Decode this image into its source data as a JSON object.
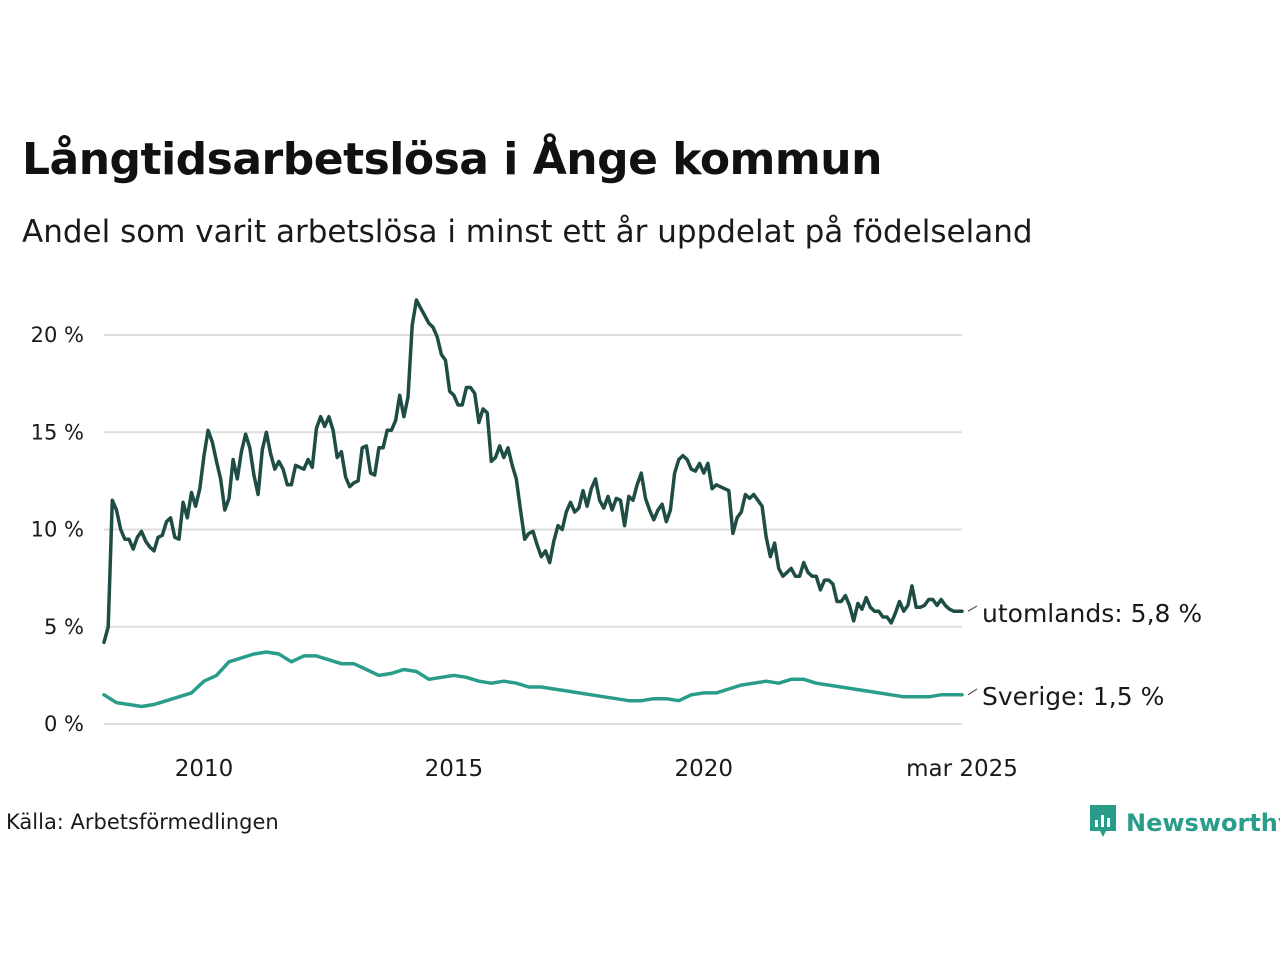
{
  "title": "Långtidsarbetslösa i Ånge kommun",
  "subtitle": "Andel som varit arbetslösa i minst ett år uppdelat på födelseland",
  "source": "Källa: Arbetsförmedlingen",
  "brand": "Newsworthy",
  "colors": {
    "utomlands": "#1e4d45",
    "sverige": "#2a9d8a",
    "grid": "#dddddd",
    "brand": "#2a9d8a"
  },
  "chart_data": {
    "type": "line",
    "x_start": "2008-01",
    "x_end": "2025-03",
    "x_ticks": [
      {
        "date": "2010-01",
        "label": "2010"
      },
      {
        "date": "2015-01",
        "label": "2015"
      },
      {
        "date": "2020-01",
        "label": "2020"
      },
      {
        "date": "2025-03",
        "label": "mar 2025"
      }
    ],
    "y_ticks": [
      {
        "value": 0,
        "label": "0 %"
      },
      {
        "value": 5,
        "label": "5 %"
      },
      {
        "value": 10,
        "label": "10 %"
      },
      {
        "value": 15,
        "label": "15 %"
      },
      {
        "value": 20,
        "label": "20 %"
      }
    ],
    "ylim": [
      0,
      20
    ],
    "grid": true,
    "series": [
      {
        "key": "utomlands",
        "end_label": "utomlands: 5,8 %",
        "points": [
          [
            "2008-01",
            4.2
          ],
          [
            "2008-02",
            5.0
          ],
          [
            "2008-03",
            11.5
          ],
          [
            "2008-04",
            11.0
          ],
          [
            "2008-05",
            10.0
          ],
          [
            "2008-06",
            9.5
          ],
          [
            "2008-07",
            9.5
          ],
          [
            "2008-08",
            9.0
          ],
          [
            "2008-09",
            9.6
          ],
          [
            "2008-10",
            9.9
          ],
          [
            "2008-11",
            9.4
          ],
          [
            "2008-12",
            9.1
          ],
          [
            "2009-01",
            8.9
          ],
          [
            "2009-02",
            9.6
          ],
          [
            "2009-03",
            9.7
          ],
          [
            "2009-04",
            10.4
          ],
          [
            "2009-05",
            10.6
          ],
          [
            "2009-06",
            9.6
          ],
          [
            "2009-07",
            9.5
          ],
          [
            "2009-08",
            11.4
          ],
          [
            "2009-09",
            10.6
          ],
          [
            "2009-10",
            11.9
          ],
          [
            "2009-11",
            11.2
          ],
          [
            "2009-12",
            12.1
          ],
          [
            "2010-01",
            13.8
          ],
          [
            "2010-02",
            15.1
          ],
          [
            "2010-03",
            14.5
          ],
          [
            "2010-04",
            13.5
          ],
          [
            "2010-05",
            12.6
          ],
          [
            "2010-06",
            11.0
          ],
          [
            "2010-07",
            11.6
          ],
          [
            "2010-08",
            13.6
          ],
          [
            "2010-09",
            12.6
          ],
          [
            "2010-10",
            14.0
          ],
          [
            "2010-11",
            14.9
          ],
          [
            "2010-12",
            14.2
          ],
          [
            "2011-01",
            12.8
          ],
          [
            "2011-02",
            11.8
          ],
          [
            "2011-03",
            14.1
          ],
          [
            "2011-04",
            15.0
          ],
          [
            "2011-05",
            13.9
          ],
          [
            "2011-06",
            13.1
          ],
          [
            "2011-07",
            13.5
          ],
          [
            "2011-08",
            13.1
          ],
          [
            "2011-09",
            12.3
          ],
          [
            "2011-10",
            12.3
          ],
          [
            "2011-11",
            13.3
          ],
          [
            "2011-12",
            13.2
          ],
          [
            "2012-01",
            13.1
          ],
          [
            "2012-02",
            13.6
          ],
          [
            "2012-03",
            13.2
          ],
          [
            "2012-04",
            15.2
          ],
          [
            "2012-05",
            15.8
          ],
          [
            "2012-06",
            15.3
          ],
          [
            "2012-07",
            15.8
          ],
          [
            "2012-08",
            15.1
          ],
          [
            "2012-09",
            13.7
          ],
          [
            "2012-10",
            14.0
          ],
          [
            "2012-11",
            12.7
          ],
          [
            "2012-12",
            12.2
          ],
          [
            "2013-01",
            12.4
          ],
          [
            "2013-02",
            12.5
          ],
          [
            "2013-03",
            14.2
          ],
          [
            "2013-04",
            14.3
          ],
          [
            "2013-05",
            12.9
          ],
          [
            "2013-06",
            12.8
          ],
          [
            "2013-07",
            14.2
          ],
          [
            "2013-08",
            14.2
          ],
          [
            "2013-09",
            15.1
          ],
          [
            "2013-10",
            15.1
          ],
          [
            "2013-11",
            15.6
          ],
          [
            "2013-12",
            16.9
          ],
          [
            "2014-01",
            15.8
          ],
          [
            "2014-02",
            16.8
          ],
          [
            "2014-03",
            20.5
          ],
          [
            "2014-04",
            21.8
          ],
          [
            "2014-05",
            21.4
          ],
          [
            "2014-06",
            21.0
          ],
          [
            "2014-07",
            20.6
          ],
          [
            "2014-08",
            20.4
          ],
          [
            "2014-09",
            19.9
          ],
          [
            "2014-10",
            19.0
          ],
          [
            "2014-11",
            18.7
          ],
          [
            "2014-12",
            17.1
          ],
          [
            "2015-01",
            16.9
          ],
          [
            "2015-02",
            16.4
          ],
          [
            "2015-03",
            16.4
          ],
          [
            "2015-04",
            17.3
          ],
          [
            "2015-05",
            17.3
          ],
          [
            "2015-06",
            17.0
          ],
          [
            "2015-07",
            15.5
          ],
          [
            "2015-08",
            16.2
          ],
          [
            "2015-09",
            16.0
          ],
          [
            "2015-10",
            13.5
          ],
          [
            "2015-11",
            13.7
          ],
          [
            "2015-12",
            14.3
          ],
          [
            "2016-01",
            13.7
          ],
          [
            "2016-02",
            14.2
          ],
          [
            "2016-03",
            13.3
          ],
          [
            "2016-04",
            12.6
          ],
          [
            "2016-05",
            11.0
          ],
          [
            "2016-06",
            9.5
          ],
          [
            "2016-07",
            9.8
          ],
          [
            "2016-08",
            9.9
          ],
          [
            "2016-09",
            9.2
          ],
          [
            "2016-10",
            8.6
          ],
          [
            "2016-11",
            8.9
          ],
          [
            "2016-12",
            8.3
          ],
          [
            "2017-01",
            9.4
          ],
          [
            "2017-02",
            10.2
          ],
          [
            "2017-03",
            10.0
          ],
          [
            "2017-04",
            10.9
          ],
          [
            "2017-05",
            11.4
          ],
          [
            "2017-06",
            10.9
          ],
          [
            "2017-07",
            11.1
          ],
          [
            "2017-08",
            12.0
          ],
          [
            "2017-09",
            11.2
          ],
          [
            "2017-10",
            12.1
          ],
          [
            "2017-11",
            12.6
          ],
          [
            "2017-12",
            11.5
          ],
          [
            "2018-01",
            11.1
          ],
          [
            "2018-02",
            11.7
          ],
          [
            "2018-03",
            11.0
          ],
          [
            "2018-04",
            11.6
          ],
          [
            "2018-05",
            11.5
          ],
          [
            "2018-06",
            10.2
          ],
          [
            "2018-07",
            11.7
          ],
          [
            "2018-08",
            11.5
          ],
          [
            "2018-09",
            12.3
          ],
          [
            "2018-10",
            12.9
          ],
          [
            "2018-11",
            11.6
          ],
          [
            "2018-12",
            11.0
          ],
          [
            "2019-01",
            10.5
          ],
          [
            "2019-02",
            11.0
          ],
          [
            "2019-03",
            11.3
          ],
          [
            "2019-04",
            10.4
          ],
          [
            "2019-05",
            11.0
          ],
          [
            "2019-06",
            12.9
          ],
          [
            "2019-07",
            13.6
          ],
          [
            "2019-08",
            13.8
          ],
          [
            "2019-09",
            13.6
          ],
          [
            "2019-10",
            13.1
          ],
          [
            "2019-11",
            13.0
          ],
          [
            "2019-12",
            13.4
          ],
          [
            "2020-01",
            12.9
          ],
          [
            "2020-02",
            13.4
          ],
          [
            "2020-03",
            12.1
          ],
          [
            "2020-04",
            12.3
          ],
          [
            "2020-05",
            12.2
          ],
          [
            "2020-06",
            12.1
          ],
          [
            "2020-07",
            12.0
          ],
          [
            "2020-08",
            9.8
          ],
          [
            "2020-09",
            10.6
          ],
          [
            "2020-10",
            10.9
          ],
          [
            "2020-11",
            11.8
          ],
          [
            "2020-12",
            11.6
          ],
          [
            "2021-01",
            11.8
          ],
          [
            "2021-02",
            11.5
          ],
          [
            "2021-03",
            11.2
          ],
          [
            "2021-04",
            9.6
          ],
          [
            "2021-05",
            8.6
          ],
          [
            "2021-06",
            9.3
          ],
          [
            "2021-07",
            8.0
          ],
          [
            "2021-08",
            7.6
          ],
          [
            "2021-09",
            7.8
          ],
          [
            "2021-10",
            8.0
          ],
          [
            "2021-11",
            7.6
          ],
          [
            "2021-12",
            7.6
          ],
          [
            "2022-01",
            8.3
          ],
          [
            "2022-02",
            7.8
          ],
          [
            "2022-03",
            7.6
          ],
          [
            "2022-04",
            7.6
          ],
          [
            "2022-05",
            6.9
          ],
          [
            "2022-06",
            7.4
          ],
          [
            "2022-07",
            7.4
          ],
          [
            "2022-08",
            7.2
          ],
          [
            "2022-09",
            6.3
          ],
          [
            "2022-10",
            6.3
          ],
          [
            "2022-11",
            6.6
          ],
          [
            "2022-12",
            6.1
          ],
          [
            "2023-01",
            5.3
          ],
          [
            "2023-02",
            6.2
          ],
          [
            "2023-03",
            5.9
          ],
          [
            "2023-04",
            6.5
          ],
          [
            "2023-05",
            6.0
          ],
          [
            "2023-06",
            5.8
          ],
          [
            "2023-07",
            5.8
          ],
          [
            "2023-08",
            5.5
          ],
          [
            "2023-09",
            5.5
          ],
          [
            "2023-10",
            5.2
          ],
          [
            "2023-11",
            5.7
          ],
          [
            "2023-12",
            6.3
          ],
          [
            "2024-01",
            5.8
          ],
          [
            "2024-02",
            6.1
          ],
          [
            "2024-03",
            7.1
          ],
          [
            "2024-04",
            6.0
          ],
          [
            "2024-05",
            6.0
          ],
          [
            "2024-06",
            6.1
          ],
          [
            "2024-07",
            6.4
          ],
          [
            "2024-08",
            6.4
          ],
          [
            "2024-09",
            6.1
          ],
          [
            "2024-10",
            6.4
          ],
          [
            "2024-11",
            6.1
          ],
          [
            "2024-12",
            5.9
          ],
          [
            "2025-01",
            5.8
          ],
          [
            "2025-02",
            5.8
          ],
          [
            "2025-03",
            5.8
          ]
        ]
      },
      {
        "key": "sverige",
        "end_label": "Sverige: 1,5 %",
        "points": [
          [
            "2008-01",
            1.5
          ],
          [
            "2008-04",
            1.1
          ],
          [
            "2008-07",
            1.0
          ],
          [
            "2008-10",
            0.9
          ],
          [
            "2009-01",
            1.0
          ],
          [
            "2009-04",
            1.2
          ],
          [
            "2009-07",
            1.4
          ],
          [
            "2009-10",
            1.6
          ],
          [
            "2010-01",
            2.2
          ],
          [
            "2010-04",
            2.5
          ],
          [
            "2010-07",
            3.2
          ],
          [
            "2010-10",
            3.4
          ],
          [
            "2011-01",
            3.6
          ],
          [
            "2011-04",
            3.7
          ],
          [
            "2011-07",
            3.6
          ],
          [
            "2011-10",
            3.2
          ],
          [
            "2012-01",
            3.5
          ],
          [
            "2012-04",
            3.5
          ],
          [
            "2012-07",
            3.3
          ],
          [
            "2012-10",
            3.1
          ],
          [
            "2013-01",
            3.1
          ],
          [
            "2013-04",
            2.8
          ],
          [
            "2013-07",
            2.5
          ],
          [
            "2013-10",
            2.6
          ],
          [
            "2014-01",
            2.8
          ],
          [
            "2014-04",
            2.7
          ],
          [
            "2014-07",
            2.3
          ],
          [
            "2014-10",
            2.4
          ],
          [
            "2015-01",
            2.5
          ],
          [
            "2015-04",
            2.4
          ],
          [
            "2015-07",
            2.2
          ],
          [
            "2015-10",
            2.1
          ],
          [
            "2016-01",
            2.2
          ],
          [
            "2016-04",
            2.1
          ],
          [
            "2016-07",
            1.9
          ],
          [
            "2016-10",
            1.9
          ],
          [
            "2017-01",
            1.8
          ],
          [
            "2017-04",
            1.7
          ],
          [
            "2017-07",
            1.6
          ],
          [
            "2017-10",
            1.5
          ],
          [
            "2018-01",
            1.4
          ],
          [
            "2018-04",
            1.3
          ],
          [
            "2018-07",
            1.2
          ],
          [
            "2018-10",
            1.2
          ],
          [
            "2019-01",
            1.3
          ],
          [
            "2019-04",
            1.3
          ],
          [
            "2019-07",
            1.2
          ],
          [
            "2019-10",
            1.5
          ],
          [
            "2020-01",
            1.6
          ],
          [
            "2020-04",
            1.6
          ],
          [
            "2020-07",
            1.8
          ],
          [
            "2020-10",
            2.0
          ],
          [
            "2021-01",
            2.1
          ],
          [
            "2021-04",
            2.2
          ],
          [
            "2021-07",
            2.1
          ],
          [
            "2021-10",
            2.3
          ],
          [
            "2022-01",
            2.3
          ],
          [
            "2022-04",
            2.1
          ],
          [
            "2022-07",
            2.0
          ],
          [
            "2022-10",
            1.9
          ],
          [
            "2023-01",
            1.8
          ],
          [
            "2023-04",
            1.7
          ],
          [
            "2023-07",
            1.6
          ],
          [
            "2023-10",
            1.5
          ],
          [
            "2024-01",
            1.4
          ],
          [
            "2024-04",
            1.4
          ],
          [
            "2024-07",
            1.4
          ],
          [
            "2024-10",
            1.5
          ],
          [
            "2025-01",
            1.5
          ],
          [
            "2025-03",
            1.5
          ]
        ]
      }
    ]
  }
}
